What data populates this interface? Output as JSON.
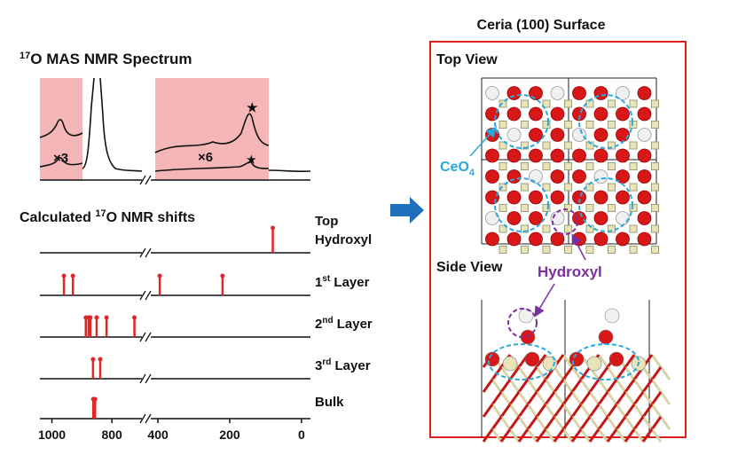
{
  "spectrum": {
    "title": {
      "sup": "17",
      "text": "O MAS NMR Spectrum"
    },
    "scale_labels": [
      "×3",
      "×6"
    ]
  },
  "shifts": {
    "title": {
      "pre": "Calculated ",
      "sup": "17",
      "post": "O NMR shifts"
    },
    "xlim": [
      [
        1040,
        700
      ],
      [
        420,
        -25
      ]
    ],
    "xticks": [
      1000,
      800,
      400,
      200,
      0
    ],
    "rows": [
      {
        "lines": [
          "Top",
          "Hydroxyl"
        ],
        "values": [
          80
        ]
      },
      {
        "n": "1",
        "sup": "st",
        "rest": " Layer",
        "values": [
          960,
          930,
          395,
          220
        ]
      },
      {
        "n": "2",
        "sup": "nd",
        "rest": " Layer",
        "values": [
          887,
          878,
          872,
          851,
          818,
          725
        ]
      },
      {
        "n": "3",
        "sup": "rd",
        "rest": " Layer",
        "values": [
          863,
          839
        ]
      },
      {
        "lines": [
          "Bulk"
        ],
        "values": [
          862,
          856
        ]
      }
    ]
  },
  "structure": {
    "title": "Ceria (100) Surface",
    "top_view": "Top View",
    "side_view": "Side View",
    "ceo4": {
      "text": "CeO",
      "sub": "4"
    },
    "hydroxyl": "Hydroxyl"
  }
}
